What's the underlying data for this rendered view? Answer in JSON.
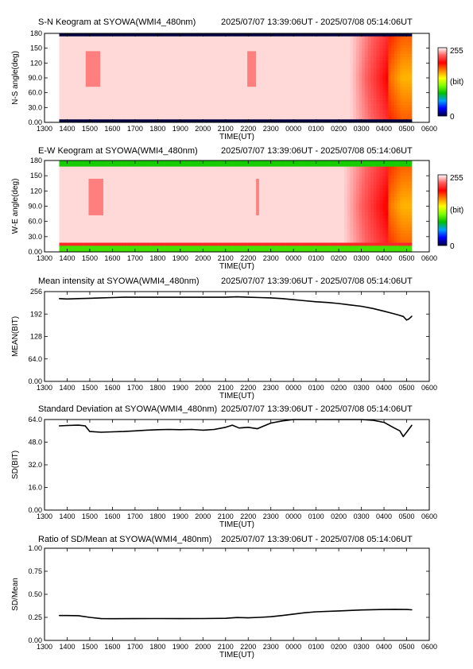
{
  "station": "SYOWA(WMI4_480nm)",
  "time_range": "2025/07/07 13:39:06UT - 2025/07/08 05:14:06UT",
  "colors": {
    "line": "#000000",
    "frame": "#000000",
    "colorbar": [
      "#000040",
      "#0000ff",
      "#00a0ff",
      "#00c000",
      "#80ff00",
      "#ffff00",
      "#ff8000",
      "#ff0000",
      "#ff6060",
      "#ffffff"
    ]
  },
  "x_axis": {
    "label": "TIME(UT)",
    "ticks": [
      "1300",
      "1400",
      "1500",
      "1600",
      "1700",
      "1800",
      "1900",
      "2000",
      "2100",
      "2200",
      "2300",
      "0000",
      "0100",
      "0200",
      "0300",
      "0400",
      "0500",
      "0600"
    ],
    "range_hours": [
      13,
      30
    ]
  },
  "chart_data": [
    {
      "type": "heatmap",
      "title": "S-N Keogram at SYOWA(WMI4_480nm)",
      "time_range": "2025/07/07 13:39:06UT - 2025/07/08 05:14:06UT",
      "xlabel": "TIME(UT)",
      "ylabel": "N-S angle(deg)",
      "yticks": [
        "0.00",
        "30.0",
        "60.0",
        "90.0",
        "120",
        "150",
        "180"
      ],
      "ylim": [
        0,
        180
      ],
      "data_range_hours": [
        13.65,
        29.23
      ],
      "colorbar": {
        "min": "0",
        "max": "255",
        "unit": "(bit)"
      },
      "description_values": {
        "background_intensity": 248,
        "faint_band_hours": [
          [
            14.8,
            15.5
          ],
          [
            22.0,
            22.4
          ]
        ],
        "brightening_start_hour": 26.5,
        "peak_hour": 28.8
      }
    },
    {
      "type": "heatmap",
      "title": "E-W Keogram at SYOWA(WMI4_480nm)",
      "time_range": "2025/07/07 13:39:06UT - 2025/07/08 05:14:06UT",
      "xlabel": "TIME(UT)",
      "ylabel": "W-E angle(deg)",
      "yticks": [
        "0.00",
        "30.0",
        "60.0",
        "90.0",
        "120",
        "150",
        "180"
      ],
      "ylim": [
        0,
        180
      ],
      "data_range_hours": [
        13.65,
        29.23
      ],
      "colorbar": {
        "min": "0",
        "max": "255",
        "unit": "(bit)"
      },
      "description_values": {
        "background_intensity": 248,
        "faint_band_hours": [
          [
            14.9,
            15.6
          ],
          [
            22.3,
            22.5
          ]
        ],
        "brightening_start_hour": 26.2,
        "peak_hour": 28.8
      }
    },
    {
      "type": "line",
      "title": "Mean intensity at SYOWA(WMI4_480nm)",
      "time_range": "2025/07/07 13:39:06UT - 2025/07/08 05:14:06UT",
      "xlabel": "TIME(UT)",
      "ylabel": "MEAN(BIT)",
      "yticks": [
        "0.00",
        "64.0",
        "128",
        "192",
        "256"
      ],
      "ylim": [
        0,
        256
      ],
      "series": [
        {
          "x": [
            13.65,
            14.0,
            14.5,
            15.0,
            15.5,
            16.0,
            16.5,
            17.0,
            17.5,
            18.0,
            18.5,
            19.0,
            19.5,
            20.0,
            20.5,
            21.0,
            21.5,
            22.0,
            22.5,
            23.0,
            23.5,
            24.0,
            24.5,
            25.0,
            25.5,
            26.0,
            26.5,
            27.0,
            27.5,
            28.0,
            28.3,
            28.6,
            28.85,
            29.0,
            29.1,
            29.23
          ],
          "values": [
            236,
            235,
            236,
            237,
            238,
            239,
            240,
            240,
            240,
            240,
            240,
            240,
            240,
            240,
            240,
            240,
            241,
            240,
            239,
            238,
            236,
            233,
            230,
            227,
            225,
            222,
            218,
            214,
            208,
            200,
            195,
            190,
            185,
            175,
            178,
            186
          ]
        }
      ]
    },
    {
      "type": "line",
      "title": "Standard Deviation at SYOWA(WMI4_480nm)",
      "time_range": "2025/07/07 13:39:06UT - 2025/07/08 05:14:06UT",
      "xlabel": "TIME(UT)",
      "ylabel": "SD(BIT)",
      "yticks": [
        "0.00",
        "16.0",
        "32.0",
        "48.0",
        "64.0"
      ],
      "ylim": [
        0,
        64
      ],
      "series": [
        {
          "x": [
            13.65,
            14.0,
            14.5,
            14.8,
            15.0,
            15.5,
            16.0,
            16.5,
            17.0,
            17.5,
            18.0,
            18.5,
            19.0,
            19.5,
            20.0,
            20.5,
            21.0,
            21.3,
            21.6,
            22.0,
            22.4,
            22.7,
            23.0,
            23.5,
            24.0,
            24.5,
            25.0,
            25.5,
            26.0,
            26.5,
            27.0,
            27.5,
            28.0,
            28.4,
            28.7,
            28.85,
            29.0,
            29.23
          ],
          "values": [
            59.5,
            59.8,
            60,
            59.5,
            55.5,
            55,
            55.3,
            55.5,
            56,
            56.5,
            56.8,
            57,
            56.8,
            57,
            56.5,
            57,
            58.5,
            60,
            58,
            58.5,
            57.5,
            59.5,
            61.5,
            63,
            64.5,
            65,
            65.5,
            66,
            66,
            65.8,
            65,
            63.5,
            62,
            58.5,
            56,
            52,
            55,
            60
          ]
        }
      ]
    },
    {
      "type": "line",
      "title": "Ratio of SD/Mean at SYOWA(WMI4_480nm)",
      "time_range": "2025/07/07 13:39:06UT - 2025/07/08 05:14:06UT",
      "xlabel": "TIME(UT)",
      "ylabel": "SD/Mean",
      "yticks": [
        "0.00",
        "0.25",
        "0.50",
        "0.75",
        "1.00"
      ],
      "ylim": [
        0,
        1.0
      ],
      "series": [
        {
          "x": [
            13.65,
            14.0,
            14.5,
            15.0,
            15.5,
            16.0,
            17.0,
            18.0,
            19.0,
            20.0,
            21.0,
            21.5,
            22.0,
            22.5,
            23.0,
            23.5,
            24.0,
            24.5,
            25.0,
            26.0,
            27.0,
            28.0,
            28.5,
            29.0,
            29.23
          ],
          "values": [
            0.27,
            0.27,
            0.268,
            0.25,
            0.236,
            0.235,
            0.236,
            0.237,
            0.236,
            0.237,
            0.24,
            0.248,
            0.245,
            0.25,
            0.257,
            0.27,
            0.285,
            0.3,
            0.31,
            0.32,
            0.33,
            0.335,
            0.337,
            0.335,
            0.332
          ]
        }
      ]
    }
  ]
}
